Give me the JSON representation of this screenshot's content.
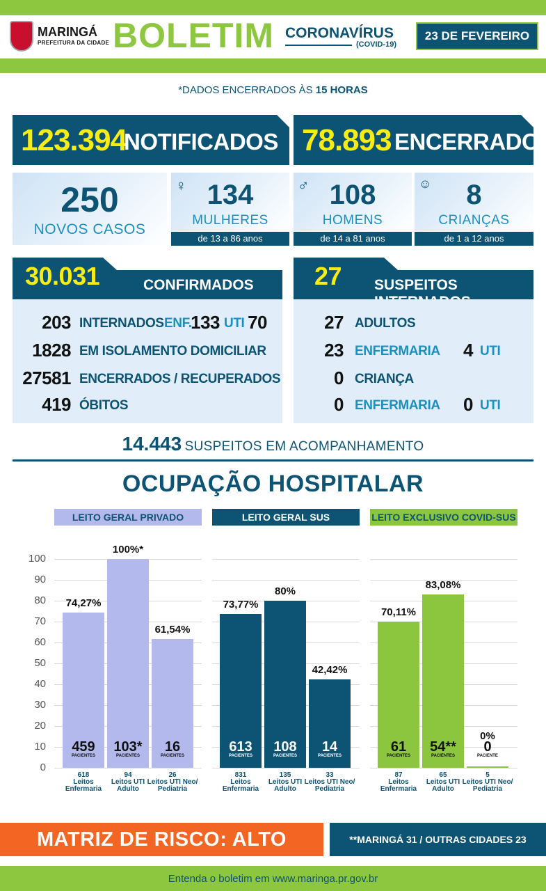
{
  "header": {
    "city": "MARINGÁ",
    "city_sub": "PREFEITURA DA CIDADE",
    "title": "BOLETIM",
    "subtitle": "CORONAVÍRUS",
    "subtitle2": "(COVID-19)",
    "date": "23 DE FEVEREIRO"
  },
  "dados_prefix": "*DADOS ENCERRADOS ÀS",
  "dados_hora": "15 HORAS",
  "notificados": {
    "value": "123.394",
    "label": "NOTIFICADOS"
  },
  "encerrados": {
    "value": "78.893",
    "label": "ENCERRADOS"
  },
  "novos": {
    "value": "250",
    "label": "NOVOS CASOS"
  },
  "mulheres": {
    "value": "134",
    "label": "MULHERES",
    "range": "de 13 a 86 anos"
  },
  "homens": {
    "value": "108",
    "label": "HOMENS",
    "range": "de 14 a 81 anos"
  },
  "criancas": {
    "value": "8",
    "label": "CRIANÇAS",
    "range": "de 1 a 12 anos"
  },
  "confirmados": {
    "value": "30.031",
    "label": "CONFIRMADOS",
    "internados": {
      "value": "203",
      "label": "INTERNADOS",
      "enf_label": "ENF.",
      "enf": "133",
      "uti_label": "UTI",
      "uti": "70"
    },
    "isolamento": {
      "value": "1828",
      "label": "EM ISOLAMENTO DOMICILIAR"
    },
    "recuperados": {
      "value": "27581",
      "label": "ENCERRADOS / RECUPERADOS"
    },
    "obitos": {
      "value": "419",
      "label": "ÓBITOS"
    }
  },
  "suspeitos": {
    "value": "27",
    "label": "SUSPEITOS INTERNADOS",
    "adultos": {
      "value": "27",
      "label": "ADULTOS"
    },
    "adultos_enf": {
      "value": "23",
      "label": "ENFERMARIA",
      "uti": "4",
      "uti_label": "UTI"
    },
    "crianca": {
      "value": "0",
      "label": "CRIANÇA"
    },
    "crianca_enf": {
      "value": "0",
      "label": "ENFERMARIA",
      "uti": "0",
      "uti_label": "UTI"
    }
  },
  "acompanhamento": {
    "value": "14.443",
    "label": "SUSPEITOS EM ACOMPANHAMENTO"
  },
  "ocupacao_title": "OCUPAÇÃO HOSPITALAR",
  "colors": {
    "navy": "#0d5374",
    "green": "#8dc63f",
    "lavender": "#b3b9ec",
    "lime": "#8cc63f",
    "orange": "#f26522",
    "yellow": "#f7ec13"
  },
  "chart_data": {
    "type": "bar",
    "ylim": [
      0,
      100
    ],
    "yticks": [
      0,
      10,
      20,
      30,
      40,
      50,
      60,
      70,
      80,
      90,
      100
    ],
    "groups": [
      {
        "name": "LEITO GERAL PRIVADO",
        "color": "#b3b9ec",
        "bars": [
          {
            "value": 74.27,
            "pct_label": "74,27%",
            "patients": "459",
            "beds": "618",
            "label": "Leitos Enfermaria"
          },
          {
            "value": 100,
            "pct_label": "100%*",
            "patients": "103*",
            "beds": "94",
            "label": "Leitos UTI Adulto"
          },
          {
            "value": 61.54,
            "pct_label": "61,54%",
            "patients": "16",
            "beds": "26",
            "label": "Leitos UTI Neo/ Pediatria"
          }
        ]
      },
      {
        "name": "LEITO GERAL SUS",
        "color": "#0d5374",
        "bars": [
          {
            "value": 73.77,
            "pct_label": "73,77%",
            "patients": "613",
            "beds": "831",
            "label": "Leitos Enfermaria"
          },
          {
            "value": 80,
            "pct_label": "80%",
            "patients": "108",
            "beds": "135",
            "label": "Leitos UTI Adulto"
          },
          {
            "value": 42.42,
            "pct_label": "42,42%",
            "patients": "14",
            "beds": "33",
            "label": "Leitos UTI Neo/ Pediatria"
          }
        ]
      },
      {
        "name": "LEITO EXCLUSIVO COVID-SUS",
        "color": "#8cc63f",
        "bars": [
          {
            "value": 70.11,
            "pct_label": "70,11%",
            "patients": "61",
            "beds": "87",
            "label": "Leitos Enfermaria"
          },
          {
            "value": 83.08,
            "pct_label": "83,08%",
            "patients": "54**",
            "beds": "65",
            "label": "Leitos UTI Adulto"
          },
          {
            "value": 0,
            "pct_label": "0%",
            "patients": "0",
            "beds": "5",
            "label": "Leitos UTI Neo/ Pediatria"
          }
        ]
      }
    ],
    "patients_label": "PACIENTES",
    "patient_label_single": "PACIENTE"
  },
  "risco": "MATRIZ DE RISCO: ALTO",
  "cidades": "**MARINGÁ 31 / OUTRAS CIDADES 23",
  "footer": "Entenda o boletim em www.maringa.pr.gov.br"
}
